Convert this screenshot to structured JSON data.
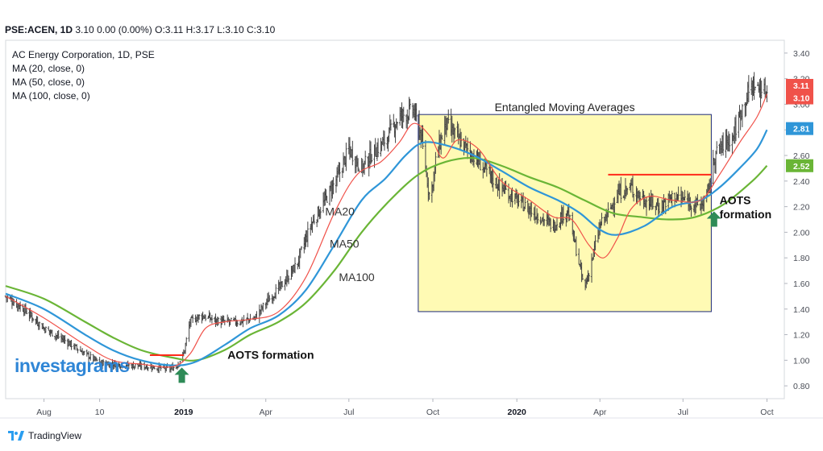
{
  "header": {
    "symbol": "PSE:ACEN, 1D",
    "quote": "3.10 0.00 (0.00%) O:3.11 H:3.17 L:3.10 C:3.10"
  },
  "legend": {
    "title": "AC Energy Corporation, 1D, PSE",
    "ma20": "MA (20, close, 0)",
    "ma50": "MA (50, close, 0)",
    "ma100": "MA (100, close, 0)"
  },
  "watermark": "investagrams",
  "footer": {
    "brand": "TradingView"
  },
  "colors": {
    "ma20": "#f0524a",
    "ma50": "#2f96d8",
    "ma100": "#6ab536",
    "box_fill": "#fffab4",
    "box_stroke": "#1c2a7a",
    "resistance": "#ff2a1a",
    "arrow": "#2e8b57",
    "candle": "#444444"
  },
  "chart_data": {
    "type": "candlestick",
    "title": "AC Energy Corporation, 1D, PSE",
    "x_range": [
      "2018-06-20",
      "2020-10-20"
    ],
    "ylim": [
      0.7,
      3.5
    ],
    "y_ticks": [
      "3.40",
      "3.20",
      "3.00",
      "2.80",
      "2.60",
      "2.40",
      "2.20",
      "2.00",
      "1.80",
      "1.60",
      "1.40",
      "1.20",
      "1.00",
      "0.80"
    ],
    "x_ticks": [
      {
        "date": "2018-08-01",
        "label": "Aug",
        "bold": false
      },
      {
        "date": "2018-10-01",
        "label": "10",
        "bold": false
      },
      {
        "date": "2019-01-01",
        "label": "2019",
        "bold": true
      },
      {
        "date": "2019-04-01",
        "label": "Apr",
        "bold": false
      },
      {
        "date": "2019-07-01",
        "label": "Jul",
        "bold": false
      },
      {
        "date": "2019-10-01",
        "label": "Oct",
        "bold": false
      },
      {
        "date": "2020-01-01",
        "label": "2020",
        "bold": true
      },
      {
        "date": "2020-04-01",
        "label": "Apr",
        "bold": false
      },
      {
        "date": "2020-07-01",
        "label": "Jul",
        "bold": false
      },
      {
        "date": "2020-10-01",
        "label": "Oct",
        "bold": false
      }
    ],
    "price_path": [
      [
        "2018-06-20",
        1.5
      ],
      [
        "2018-07-10",
        1.4
      ],
      [
        "2018-08-01",
        1.25
      ],
      [
        "2018-08-25",
        1.15
      ],
      [
        "2018-09-15",
        1.05
      ],
      [
        "2018-10-01",
        0.98
      ],
      [
        "2018-11-01",
        0.96
      ],
      [
        "2018-11-25",
        0.95
      ],
      [
        "2018-12-15",
        0.93
      ],
      [
        "2018-12-24",
        0.95
      ],
      [
        "2019-01-01",
        1.05
      ],
      [
        "2019-01-08",
        1.3
      ],
      [
        "2019-01-20",
        1.35
      ],
      [
        "2019-02-10",
        1.3
      ],
      [
        "2019-03-01",
        1.3
      ],
      [
        "2019-03-20",
        1.33
      ],
      [
        "2019-04-01",
        1.45
      ],
      [
        "2019-04-20",
        1.6
      ],
      [
        "2019-05-05",
        1.75
      ],
      [
        "2019-05-20",
        2.05
      ],
      [
        "2019-06-05",
        2.25
      ],
      [
        "2019-06-20",
        2.45
      ],
      [
        "2019-07-01",
        2.65
      ],
      [
        "2019-07-15",
        2.5
      ],
      [
        "2019-07-25",
        2.6
      ],
      [
        "2019-08-10",
        2.72
      ],
      [
        "2019-08-25",
        2.9
      ],
      [
        "2019-09-10",
        2.95
      ],
      [
        "2019-09-18",
        2.75
      ],
      [
        "2019-09-28",
        2.25
      ],
      [
        "2019-10-05",
        2.6
      ],
      [
        "2019-10-15",
        2.85
      ],
      [
        "2019-11-01",
        2.7
      ],
      [
        "2019-11-20",
        2.55
      ],
      [
        "2019-12-10",
        2.38
      ],
      [
        "2020-01-01",
        2.25
      ],
      [
        "2020-01-20",
        2.15
      ],
      [
        "2020-02-10",
        2.05
      ],
      [
        "2020-02-25",
        2.18
      ],
      [
        "2020-03-05",
        1.9
      ],
      [
        "2020-03-15",
        1.55
      ],
      [
        "2020-03-22",
        1.75
      ],
      [
        "2020-04-01",
        2.05
      ],
      [
        "2020-04-10",
        2.15
      ],
      [
        "2020-04-20",
        2.3
      ],
      [
        "2020-05-05",
        2.35
      ],
      [
        "2020-05-20",
        2.25
      ],
      [
        "2020-06-05",
        2.2
      ],
      [
        "2020-06-20",
        2.28
      ],
      [
        "2020-07-05",
        2.25
      ],
      [
        "2020-07-20",
        2.2
      ],
      [
        "2020-07-28",
        2.3
      ],
      [
        "2020-08-05",
        2.6
      ],
      [
        "2020-08-15",
        2.7
      ],
      [
        "2020-08-25",
        2.75
      ],
      [
        "2020-09-05",
        3.0
      ],
      [
        "2020-09-15",
        3.15
      ],
      [
        "2020-09-28",
        3.1
      ],
      [
        "2020-10-01",
        3.1
      ]
    ],
    "ma_series": [
      {
        "name": "MA20",
        "key": "ma20",
        "points": [
          [
            "2018-06-20",
            1.5
          ],
          [
            "2018-08-01",
            1.33
          ],
          [
            "2018-09-15",
            1.12
          ],
          [
            "2018-10-15",
            1.0
          ],
          [
            "2018-11-15",
            0.97
          ],
          [
            "2018-12-20",
            0.95
          ],
          [
            "2019-01-08",
            1.05
          ],
          [
            "2019-01-25",
            1.25
          ],
          [
            "2019-02-15",
            1.3
          ],
          [
            "2019-03-15",
            1.32
          ],
          [
            "2019-04-15",
            1.38
          ],
          [
            "2019-05-15",
            1.65
          ],
          [
            "2019-06-15",
            2.15
          ],
          [
            "2019-07-10",
            2.45
          ],
          [
            "2019-08-05",
            2.55
          ],
          [
            "2019-08-25",
            2.7
          ],
          [
            "2019-09-10",
            2.85
          ],
          [
            "2019-09-28",
            2.75
          ],
          [
            "2019-10-12",
            2.58
          ],
          [
            "2019-10-28",
            2.72
          ],
          [
            "2019-11-20",
            2.65
          ],
          [
            "2019-12-15",
            2.4
          ],
          [
            "2020-01-15",
            2.25
          ],
          [
            "2020-02-10",
            2.12
          ],
          [
            "2020-03-01",
            2.1
          ],
          [
            "2020-03-20",
            1.9
          ],
          [
            "2020-04-05",
            1.8
          ],
          [
            "2020-04-20",
            1.95
          ],
          [
            "2020-05-05",
            2.18
          ],
          [
            "2020-05-25",
            2.28
          ],
          [
            "2020-06-20",
            2.25
          ],
          [
            "2020-07-20",
            2.25
          ],
          [
            "2020-08-10",
            2.45
          ],
          [
            "2020-09-01",
            2.7
          ],
          [
            "2020-09-20",
            2.9
          ],
          [
            "2020-10-01",
            3.08
          ]
        ]
      },
      {
        "name": "MA50",
        "key": "ma50",
        "points": [
          [
            "2018-06-20",
            1.52
          ],
          [
            "2018-08-01",
            1.4
          ],
          [
            "2018-09-15",
            1.2
          ],
          [
            "2018-10-15",
            1.08
          ],
          [
            "2018-11-15",
            1.0
          ],
          [
            "2018-12-20",
            0.96
          ],
          [
            "2019-01-15",
            0.99
          ],
          [
            "2019-02-15",
            1.12
          ],
          [
            "2019-03-15",
            1.25
          ],
          [
            "2019-04-15",
            1.35
          ],
          [
            "2019-05-15",
            1.55
          ],
          [
            "2019-06-15",
            1.9
          ],
          [
            "2019-07-15",
            2.25
          ],
          [
            "2019-08-10",
            2.42
          ],
          [
            "2019-09-01",
            2.6
          ],
          [
            "2019-09-20",
            2.7
          ],
          [
            "2019-10-15",
            2.68
          ],
          [
            "2019-11-15",
            2.6
          ],
          [
            "2019-12-15",
            2.48
          ],
          [
            "2020-01-15",
            2.35
          ],
          [
            "2020-02-15",
            2.25
          ],
          [
            "2020-03-10",
            2.15
          ],
          [
            "2020-04-01",
            2.02
          ],
          [
            "2020-04-20",
            1.98
          ],
          [
            "2020-05-20",
            2.05
          ],
          [
            "2020-06-20",
            2.2
          ],
          [
            "2020-07-20",
            2.25
          ],
          [
            "2020-08-10",
            2.35
          ],
          [
            "2020-09-01",
            2.5
          ],
          [
            "2020-09-20",
            2.65
          ],
          [
            "2020-10-01",
            2.8
          ]
        ]
      },
      {
        "name": "MA100",
        "key": "ma100",
        "points": [
          [
            "2018-06-20",
            1.58
          ],
          [
            "2018-08-01",
            1.48
          ],
          [
            "2018-09-15",
            1.3
          ],
          [
            "2018-10-15",
            1.18
          ],
          [
            "2018-11-15",
            1.08
          ],
          [
            "2018-12-20",
            1.02
          ],
          [
            "2019-01-15",
            1.0
          ],
          [
            "2019-02-15",
            1.08
          ],
          [
            "2019-03-15",
            1.2
          ],
          [
            "2019-04-15",
            1.3
          ],
          [
            "2019-05-15",
            1.45
          ],
          [
            "2019-06-15",
            1.7
          ],
          [
            "2019-07-15",
            2.0
          ],
          [
            "2019-08-15",
            2.25
          ],
          [
            "2019-09-15",
            2.45
          ],
          [
            "2019-10-15",
            2.55
          ],
          [
            "2019-11-15",
            2.58
          ],
          [
            "2019-12-15",
            2.52
          ],
          [
            "2020-01-15",
            2.43
          ],
          [
            "2020-02-15",
            2.35
          ],
          [
            "2020-03-15",
            2.25
          ],
          [
            "2020-04-15",
            2.15
          ],
          [
            "2020-05-15",
            2.12
          ],
          [
            "2020-06-15",
            2.1
          ],
          [
            "2020-07-15",
            2.12
          ],
          [
            "2020-08-15",
            2.22
          ],
          [
            "2020-09-15",
            2.4
          ],
          [
            "2020-10-01",
            2.52
          ]
        ]
      }
    ],
    "price_badges": [
      {
        "label": "3.11",
        "value": 3.11,
        "color": "#f0524a",
        "text_color": "#ffffff"
      },
      {
        "label": "3.10",
        "value": 3.1,
        "color": "#f0524a",
        "text_color": "#ffffff"
      },
      {
        "label": "2.81",
        "value": 2.81,
        "color": "#2f96d8",
        "text_color": "#ffffff"
      },
      {
        "label": "2.52",
        "value": 2.52,
        "color": "#6ab536",
        "text_color": "#ffffff"
      }
    ],
    "box": {
      "from": "2019-09-15",
      "to": "2020-08-01",
      "low": 1.38,
      "high": 2.92,
      "label": "Entangled Moving Averages"
    },
    "resistance_lines": [
      {
        "from": "2018-11-25",
        "to": "2019-01-01",
        "value": 1.04
      },
      {
        "from": "2020-04-10",
        "to": "2020-08-01",
        "value": 2.45
      }
    ],
    "annotations": [
      {
        "text": "AOTS formation",
        "date": "2019-02-18",
        "value": 1.01
      },
      {
        "text": "AOTS",
        "date": "2020-08-10",
        "value": 2.22
      },
      {
        "text": "formation",
        "date": "2020-08-10",
        "value": 2.11
      },
      {
        "text": "MA20",
        "date": "2019-06-05",
        "value": 2.13
      },
      {
        "text": "MA50",
        "date": "2019-06-10",
        "value": 1.88
      },
      {
        "text": "MA100",
        "date": "2019-06-20",
        "value": 1.62
      }
    ],
    "arrows": [
      {
        "date": "2018-12-30",
        "value": 0.88
      },
      {
        "date": "2020-08-04",
        "value": 2.1
      }
    ]
  }
}
